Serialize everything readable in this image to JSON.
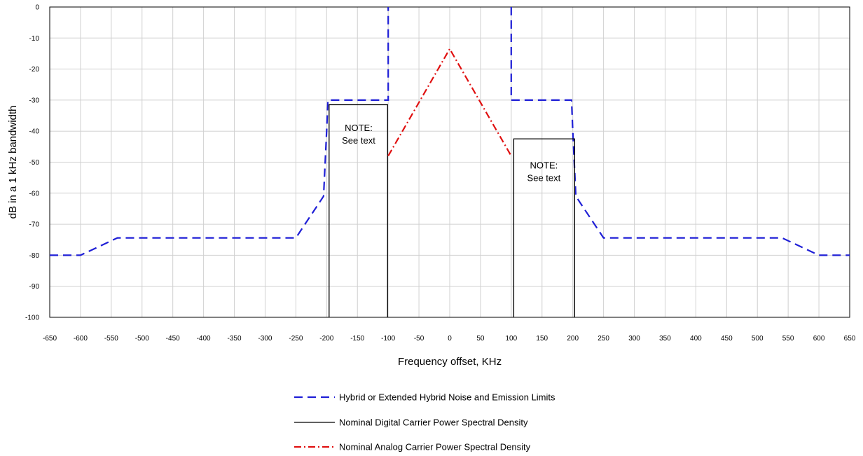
{
  "chart_data": {
    "type": "line",
    "xlabel": "Frequency offset, KHz",
    "ylabel": "dB in a 1 kHz bandwidth",
    "xlim": [
      -650,
      650
    ],
    "ylim": [
      -100,
      0
    ],
    "xticks": [
      -650,
      -600,
      -550,
      -500,
      -450,
      -400,
      -350,
      -300,
      -250,
      -200,
      -150,
      -100,
      -50,
      0,
      50,
      100,
      150,
      200,
      250,
      300,
      350,
      400,
      450,
      500,
      550,
      600,
      650
    ],
    "yticks": [
      0,
      -10,
      -20,
      -30,
      -40,
      -50,
      -60,
      -70,
      -80,
      -90,
      -100
    ],
    "grid": true,
    "legend_position": "bottom",
    "series": [
      {
        "name": "Hybrid or Extended Hybrid Noise and Emission Limits",
        "style": "dashed",
        "color": "#1f1fd6",
        "segments": [
          {
            "x": [
              -650,
              -600,
              -540,
              -250,
              -205,
              -200,
              -198,
              -100,
              -100
            ],
            "y": [
              -80,
              -80,
              -74.4,
              -74.4,
              -61,
              -40,
              -30,
              -30,
              0
            ]
          },
          {
            "x": [
              100,
              100,
              198,
              200,
              205,
              250,
              540,
              600,
              650
            ],
            "y": [
              0,
              -30,
              -30,
              -40,
              -61,
              -74.4,
              -74.4,
              -80,
              -80
            ]
          }
        ]
      },
      {
        "name": "Nominal Digital Carrier Power Spectral Density",
        "style": "solid",
        "color": "#000000",
        "segments": [
          {
            "x": [
              -196,
              -196,
              -101,
              -101
            ],
            "y": [
              -100,
              -31.5,
              -31.5,
              -100
            ]
          },
          {
            "x": [
              104,
              104,
              203,
              203
            ],
            "y": [
              -100,
              -42.5,
              -42.5,
              -100
            ]
          }
        ]
      },
      {
        "name": "Nominal Analog Carrier Power Spectral Density",
        "style": "dashdot",
        "color": "#e01010",
        "segments": [
          {
            "x": [
              -100,
              0,
              100
            ],
            "y": [
              -48,
              -13.5,
              -48
            ]
          }
        ]
      }
    ],
    "annotations": [
      {
        "line1": "NOTE:",
        "line2": "See text",
        "x": -148,
        "y": -40
      },
      {
        "line1": "NOTE:",
        "line2": "See text",
        "x": 153,
        "y": -52
      }
    ]
  }
}
